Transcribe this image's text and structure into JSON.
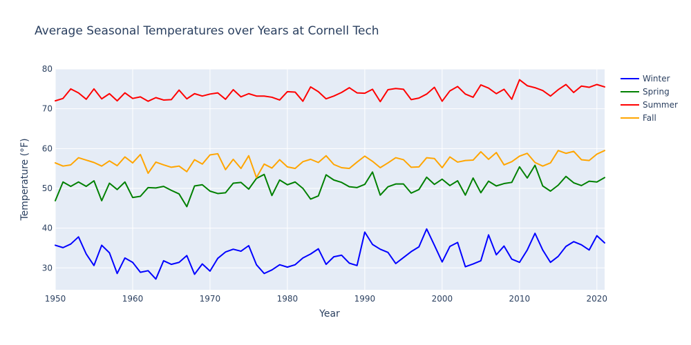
{
  "chart_data": {
    "type": "line",
    "title": "Average Seasonal Temperatures over Years at Cornell Tech",
    "xlabel": "Year",
    "ylabel": "Temperature (°F)",
    "xlim": [
      1950,
      2021
    ],
    "ylim": [
      24.5,
      80
    ],
    "x_ticks": [
      1950,
      1960,
      1970,
      1980,
      1990,
      2000,
      2010,
      2020
    ],
    "y_ticks": [
      30,
      40,
      50,
      60,
      70,
      80
    ],
    "grid": true,
    "legend_position": "top-right",
    "background_color": "#e5ecf6",
    "x": [
      1950,
      1951,
      1952,
      1953,
      1954,
      1955,
      1956,
      1957,
      1958,
      1959,
      1960,
      1961,
      1962,
      1963,
      1964,
      1965,
      1966,
      1967,
      1968,
      1969,
      1970,
      1971,
      1972,
      1973,
      1974,
      1975,
      1976,
      1977,
      1978,
      1979,
      1980,
      1981,
      1982,
      1983,
      1984,
      1985,
      1986,
      1987,
      1988,
      1989,
      1990,
      1991,
      1992,
      1993,
      1994,
      1995,
      1996,
      1997,
      1998,
      1999,
      2000,
      2001,
      2002,
      2003,
      2004,
      2005,
      2006,
      2007,
      2008,
      2009,
      2010,
      2011,
      2012,
      2013,
      2014,
      2015,
      2016,
      2017,
      2018,
      2019,
      2020,
      2021
    ],
    "series": [
      {
        "name": "Winter",
        "color": "#0000ff",
        "values": [
          35.7,
          35.1,
          36.0,
          37.8,
          33.5,
          30.6,
          35.7,
          33.8,
          28.6,
          32.5,
          31.4,
          28.9,
          29.3,
          27.2,
          31.8,
          30.9,
          31.4,
          33.1,
          28.4,
          31.0,
          29.2,
          32.4,
          34.0,
          34.7,
          34.2,
          35.6,
          30.8,
          28.6,
          29.5,
          30.8,
          30.2,
          30.8,
          32.5,
          33.5,
          34.8,
          30.9,
          32.8,
          33.2,
          31.2,
          30.6,
          39.0,
          35.9,
          34.7,
          33.9,
          31.1,
          32.6,
          34.1,
          35.3,
          39.8,
          35.7,
          31.5,
          35.4,
          36.4,
          30.3,
          31.0,
          31.8,
          38.3,
          33.3,
          35.5,
          32.2,
          31.4,
          34.5,
          38.7,
          34.5,
          31.4,
          32.9,
          35.4,
          36.6,
          35.8,
          34.5,
          38.1,
          36.3
        ]
      },
      {
        "name": "Spring",
        "color": "#008000",
        "values": [
          46.9,
          51.6,
          50.5,
          51.6,
          50.5,
          51.9,
          46.9,
          51.3,
          49.7,
          51.6,
          47.7,
          48.0,
          50.2,
          50.1,
          50.5,
          49.5,
          48.6,
          45.4,
          50.6,
          50.9,
          49.3,
          48.7,
          48.9,
          51.3,
          51.5,
          49.8,
          52.5,
          53.5,
          48.2,
          52.1,
          50.9,
          51.6,
          50.0,
          47.3,
          48.1,
          53.4,
          52.1,
          51.5,
          50.4,
          50.2,
          51.0,
          54.1,
          48.3,
          50.4,
          51.1,
          51.1,
          48.8,
          49.7,
          52.8,
          51.0,
          52.3,
          50.7,
          51.9,
          48.3,
          52.6,
          48.9,
          51.8,
          50.6,
          51.2,
          51.5,
          55.4,
          52.6,
          55.8,
          50.6,
          49.3,
          50.8,
          53.0,
          51.4,
          50.7,
          51.8,
          51.6,
          52.7
        ]
      },
      {
        "name": "Summer",
        "color": "#ff0000",
        "values": [
          72.0,
          72.6,
          75.0,
          74.0,
          72.4,
          75.0,
          72.5,
          73.8,
          72.0,
          74.0,
          72.6,
          73.0,
          71.9,
          72.8,
          72.2,
          72.3,
          74.7,
          72.5,
          73.8,
          73.2,
          73.7,
          74.0,
          72.4,
          74.8,
          73.0,
          73.8,
          73.2,
          73.2,
          72.9,
          72.2,
          74.3,
          74.2,
          71.9,
          75.5,
          74.3,
          72.5,
          73.2,
          74.1,
          75.3,
          74.0,
          73.9,
          74.9,
          71.8,
          74.8,
          75.1,
          74.9,
          72.3,
          72.7,
          73.7,
          75.4,
          71.9,
          74.5,
          75.6,
          73.7,
          72.9,
          76.0,
          75.2,
          73.8,
          74.9,
          72.4,
          77.3,
          75.8,
          75.3,
          74.6,
          73.2,
          74.8,
          76.1,
          74.1,
          75.7,
          75.4,
          76.1,
          75.5
        ]
      },
      {
        "name": "Fall",
        "color": "#ffa500",
        "values": [
          56.4,
          55.6,
          55.9,
          57.7,
          57.1,
          56.5,
          55.6,
          56.9,
          55.7,
          57.9,
          56.4,
          58.5,
          53.8,
          56.6,
          55.9,
          55.3,
          55.6,
          54.2,
          57.2,
          56.1,
          58.4,
          58.7,
          54.7,
          57.3,
          55.0,
          58.2,
          52.7,
          56.1,
          55.1,
          57.2,
          55.4,
          55.0,
          56.7,
          57.3,
          56.5,
          58.2,
          56.0,
          55.2,
          55.0,
          56.6,
          58.1,
          56.8,
          55.2,
          56.4,
          57.7,
          57.2,
          55.3,
          55.4,
          57.7,
          57.5,
          55.2,
          57.9,
          56.6,
          57.0,
          57.1,
          59.2,
          57.3,
          59.0,
          55.9,
          56.7,
          58.1,
          58.8,
          56.5,
          55.6,
          56.4,
          59.5,
          58.8,
          59.3,
          57.2,
          57.0,
          58.6,
          59.5
        ]
      }
    ]
  }
}
